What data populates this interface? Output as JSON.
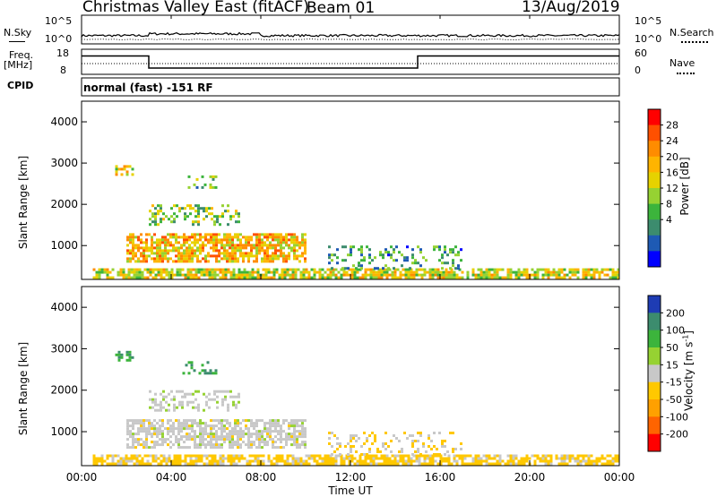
{
  "header": {
    "station": "Christmas Valley East (fitACF)",
    "beam": "Beam 01",
    "date": "13/Aug/2019"
  },
  "noise_panel": {
    "left_label": "N.Sky",
    "left_ticks": [
      "10^5",
      "10^0"
    ],
    "right_ticks": [
      "10^5",
      "10^0"
    ],
    "right_label": "N.Search"
  },
  "freq_panel": {
    "left_label_line1": "Freq.",
    "left_label_line2": "[MHz]",
    "left_ticks": [
      "18",
      "8"
    ],
    "right_ticks": [
      "60",
      "0"
    ],
    "right_label": "Nave",
    "cpid_label": "CPID",
    "cpid_value": "normal (fast) -151 RF"
  },
  "chart_data": [
    {
      "type": "heatmap",
      "name": "power",
      "ylabel": "Slant Range [km]",
      "xlabel": "",
      "x_ticks": [
        "00:00",
        "04:00",
        "08:00",
        "12:00",
        "16:00",
        "20:00",
        "00:00"
      ],
      "xlim_hours": [
        0,
        24
      ],
      "ylim": [
        180,
        4500
      ],
      "y_ticks": [
        1000,
        2000,
        3000,
        4000
      ],
      "colorbar_label": "Power [dB]",
      "colorbar_ticks": [
        "28",
        "24",
        "20",
        "16",
        "12",
        "8",
        "4"
      ],
      "colorbar_colors": [
        "#ff0000",
        "#ff5000",
        "#ff8c00",
        "#ffb400",
        "#e6d200",
        "#96d232",
        "#3cb43c",
        "#3c8c6e",
        "#1e5ab4",
        "#0000ff"
      ],
      "echo_regions": [
        {
          "t0": 0.5,
          "t1": 24.0,
          "r0": 200,
          "r1": 450,
          "power": 16,
          "density": 0.75
        },
        {
          "t0": 2.0,
          "t1": 10.0,
          "r0": 600,
          "r1": 1300,
          "power": 20,
          "density": 0.7
        },
        {
          "t0": 3.0,
          "t1": 7.0,
          "r0": 1500,
          "r1": 2000,
          "power": 12,
          "density": 0.35
        },
        {
          "t0": 1.5,
          "t1": 2.3,
          "r0": 2700,
          "r1": 2950,
          "power": 18,
          "density": 0.5
        },
        {
          "t0": 4.5,
          "t1": 6.0,
          "r0": 2400,
          "r1": 2700,
          "power": 10,
          "density": 0.3
        },
        {
          "t0": 11.0,
          "t1": 17.0,
          "r0": 450,
          "r1": 1000,
          "power": 8,
          "density": 0.25
        }
      ]
    },
    {
      "type": "heatmap",
      "name": "velocity",
      "ylabel": "Slant Range [km]",
      "xlabel": "Time UT",
      "x_ticks": [
        "00:00",
        "04:00",
        "08:00",
        "12:00",
        "16:00",
        "20:00",
        "00:00"
      ],
      "xlim_hours": [
        0,
        24
      ],
      "ylim": [
        180,
        4500
      ],
      "y_ticks": [
        1000,
        2000,
        3000,
        4000
      ],
      "colorbar_label": "Velocity [m s^-1]",
      "colorbar_ticks": [
        "200",
        "100",
        "50",
        "15",
        "-15",
        "-50",
        "-100",
        "-200"
      ],
      "colorbar_colors": [
        "#1e3cb4",
        "#3c8c6e",
        "#3cb43c",
        "#96d232",
        "#c8c8c8",
        "#ffc800",
        "#ffa000",
        "#ff6400",
        "#ff0000"
      ],
      "echo_regions": [
        {
          "t0": 0.5,
          "t1": 24.0,
          "r0": 200,
          "r1": 450,
          "velocity": -40,
          "density": 0.75
        },
        {
          "t0": 2.0,
          "t1": 10.0,
          "r0": 600,
          "r1": 1300,
          "velocity": 0,
          "density": 0.7
        },
        {
          "t0": 3.0,
          "t1": 7.0,
          "r0": 1500,
          "r1": 2000,
          "velocity": 5,
          "density": 0.35
        },
        {
          "t0": 1.5,
          "t1": 2.3,
          "r0": 2700,
          "r1": 2950,
          "velocity": 120,
          "density": 0.5
        },
        {
          "t0": 4.5,
          "t1": 6.0,
          "r0": 2400,
          "r1": 2700,
          "velocity": 120,
          "density": 0.3
        },
        {
          "t0": 11.0,
          "t1": 17.0,
          "r0": 450,
          "r1": 1000,
          "velocity": -30,
          "density": 0.25
        }
      ]
    }
  ]
}
